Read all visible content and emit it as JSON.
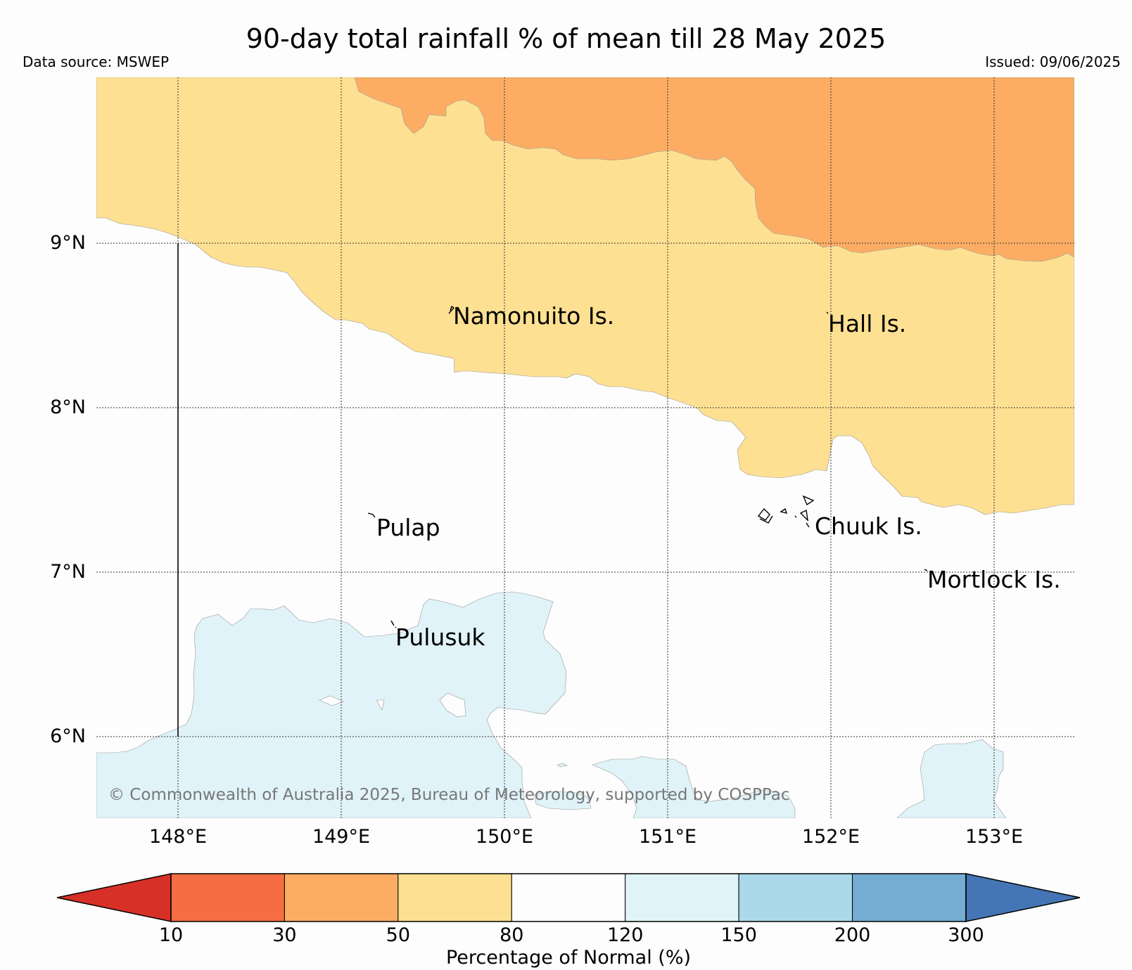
{
  "title": "90-day total rainfall % of mean till 28 May 2025",
  "data_source": "Data source: MSWEP",
  "issued": "Issued: 09/06/2025",
  "copyright": "© Commonwealth of Australia 2025, Bureau of Meteorology, supported by COSPPac",
  "map": {
    "lon_ticks": [
      "148°E",
      "149°E",
      "150°E",
      "151°E",
      "152°E",
      "153°E"
    ],
    "lat_ticks": [
      "9°N",
      "8°N",
      "7°N",
      "6°N"
    ],
    "places": [
      {
        "id": "namonuito",
        "name": "Namonuito Is."
      },
      {
        "id": "hall",
        "name": "Hall Is."
      },
      {
        "id": "pulap",
        "name": "Pulap"
      },
      {
        "id": "chuuk",
        "name": "Chuuk Is."
      },
      {
        "id": "mortlock",
        "name": "Mortlock Is."
      },
      {
        "id": "pulusuk",
        "name": "Pulusuk"
      }
    ],
    "categories": [
      {
        "range": "30–50",
        "color": "#fcad63"
      },
      {
        "range": "50–80",
        "color": "#fee092"
      },
      {
        "range": "80–120",
        "color": "#fdfdfd"
      },
      {
        "range": "120–150",
        "color": "#e0f3f8"
      }
    ]
  },
  "colorbar": {
    "label": "Percentage of Normal (%)",
    "ticks": [
      "10",
      "30",
      "50",
      "80",
      "120",
      "150",
      "200",
      "300"
    ],
    "under_color": "#d73027",
    "over_color": "#4575b4",
    "colors": [
      "#f46d43",
      "#fcad63",
      "#fee092",
      "#fdfdfd",
      "#e0f3f8",
      "#abd9e9",
      "#74add1"
    ]
  }
}
